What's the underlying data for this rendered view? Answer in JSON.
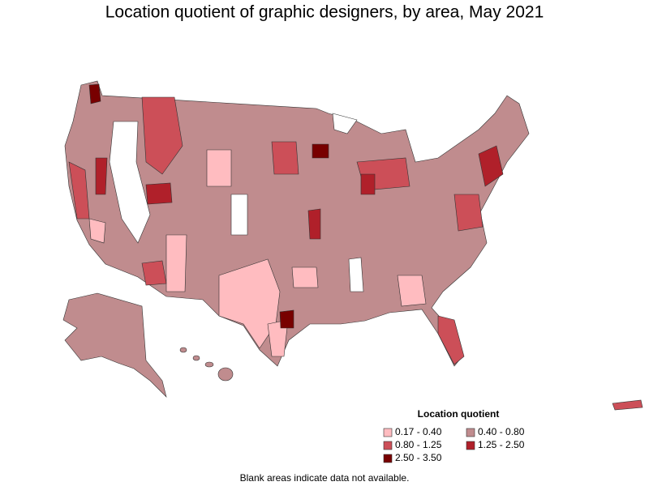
{
  "title": "Location quotient of graphic designers, by area, May 2021",
  "legend": {
    "title": "Location quotient",
    "items": [
      {
        "label": "0.17 - 0.40",
        "color": "#ffbcc0"
      },
      {
        "label": "0.40 - 0.80",
        "color": "#c08c8e"
      },
      {
        "label": "0.80 - 1.25",
        "color": "#cc4f58"
      },
      {
        "label": "1.25 - 2.50",
        "color": "#b0202a"
      },
      {
        "label": "2.50 - 3.50",
        "color": "#780000"
      }
    ]
  },
  "note": "Blank areas indicate data not available."
}
